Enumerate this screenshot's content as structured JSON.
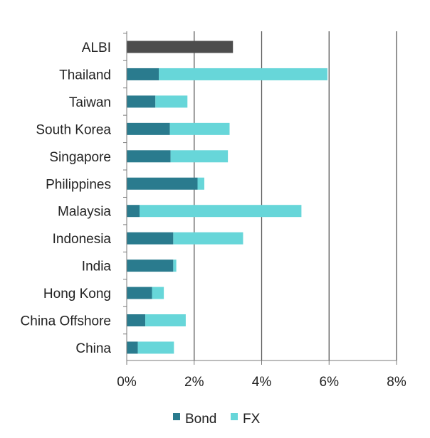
{
  "chart_data": {
    "type": "bar",
    "orientation": "horizontal",
    "stacked": true,
    "categories": [
      "ALBI",
      "Thailand",
      "Taiwan",
      "South Korea",
      "Singapore",
      "Philippines",
      "Malaysia",
      "Indonesia",
      "India",
      "Hong Kong",
      "China Offshore",
      "China"
    ],
    "series": [
      {
        "name": "Bond",
        "color": "#2a7b8e",
        "values": [
          null,
          0.95,
          0.85,
          1.28,
          1.3,
          2.1,
          0.38,
          1.38,
          1.38,
          0.75,
          0.55,
          0.33
        ]
      },
      {
        "name": "FX",
        "color": "#67d6d9",
        "values": [
          null,
          5.0,
          0.95,
          1.77,
          1.7,
          0.2,
          4.8,
          2.07,
          0.09,
          0.35,
          1.2,
          1.07
        ]
      }
    ],
    "totals": {
      "ALBI": 3.15
    },
    "total_color": "#4d4d4d",
    "xlim": [
      0,
      8
    ],
    "x_ticks": [
      "0%",
      "2%",
      "4%",
      "6%",
      "8%"
    ],
    "x_tick_values": [
      0,
      2,
      4,
      6,
      8
    ],
    "grid": "vertical",
    "legend": [
      "Bond",
      "FX"
    ],
    "legend_position": "bottom",
    "title": "",
    "xlabel": "",
    "ylabel": ""
  }
}
